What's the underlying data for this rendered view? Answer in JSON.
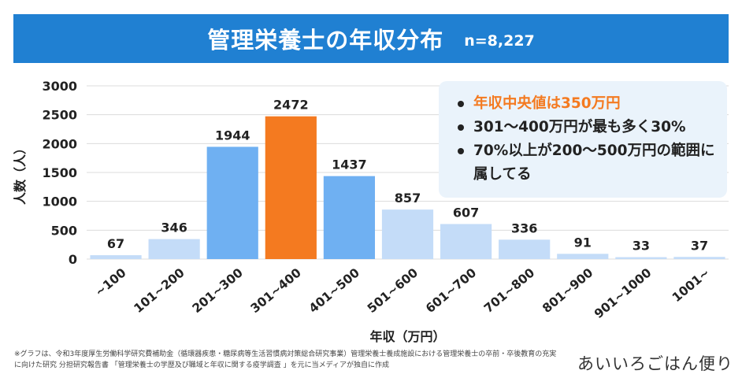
{
  "header": {
    "title": "管理栄養士の年収分布",
    "sample": "n=8,227"
  },
  "callout": {
    "items": [
      "年収中央値は350万円",
      "301〜400万円が最も多く30%",
      "70%以上が200〜500万円の範囲に属してる"
    ]
  },
  "colors": {
    "light": "#c4dcf8",
    "mid": "#6fb0f2",
    "accent": "#f47a20",
    "header": "#2080d2"
  },
  "chart_data": {
    "type": "bar",
    "title": "管理栄養士の年収分布",
    "xlabel": "年収（万円）",
    "ylabel": "人数（人）",
    "ylim": [
      0,
      3000
    ],
    "yticks": [
      "0",
      "500",
      "1000",
      "1500",
      "2000",
      "2500",
      "3000"
    ],
    "categories": [
      "~100",
      "101~200",
      "201~300",
      "301~400",
      "401~500",
      "501~600",
      "601~700",
      "701~800",
      "801~900",
      "901~1000",
      "1001~"
    ],
    "values": [
      67,
      346,
      1944,
      2472,
      1437,
      857,
      607,
      336,
      91,
      33,
      37
    ],
    "highlight": [
      "light",
      "light",
      "mid",
      "accent",
      "mid",
      "light",
      "light",
      "light",
      "light",
      "light",
      "light"
    ],
    "grid": true
  },
  "footnote": "※グラフは、令和3年度厚生労働科学研究費補助金（循環器疾患・糖尿病等生活習慣病対策総合研究事業）管理栄養士養成施設における管理栄養士の卒前・卒後教育の充実に向けた研究 分担研究報告書 「管理栄養士の学歴及び職域と年収に関する疫学調査 」を元に当メディアが独自に作成",
  "brand": "あいいろごはん便り"
}
